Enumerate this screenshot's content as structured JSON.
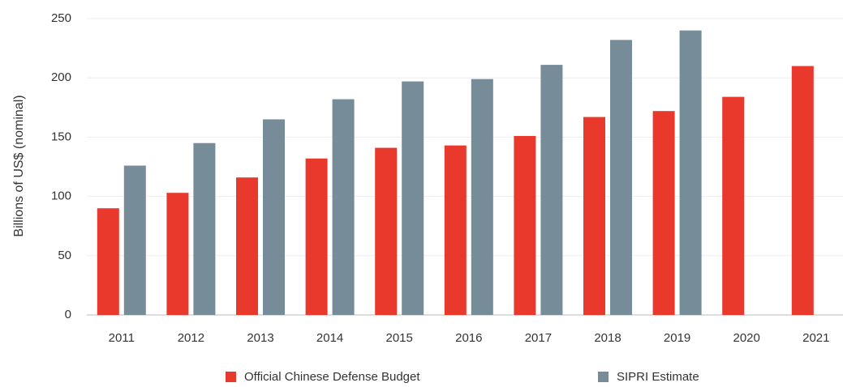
{
  "chart_data": {
    "type": "bar",
    "y_label": "Billions of US$ (nominal)",
    "categories": [
      "2011",
      "2012",
      "2013",
      "2014",
      "2015",
      "2016",
      "2017",
      "2018",
      "2019",
      "2020",
      "2021"
    ],
    "series": [
      {
        "name": "Official Chinese Defense Budget",
        "color": "#e8392c",
        "values": [
          90,
          103,
          116,
          132,
          141,
          143,
          151,
          167,
          172,
          184,
          210
        ]
      },
      {
        "name": "SIPRI Estimate",
        "color": "#778c99",
        "values": [
          126,
          145,
          165,
          182,
          197,
          199,
          211,
          232,
          240,
          null,
          null
        ]
      }
    ],
    "ylim": [
      0,
      250
    ],
    "yticks": [
      0,
      50,
      100,
      150,
      200,
      250
    ],
    "grid": true,
    "legend": "bottom"
  }
}
